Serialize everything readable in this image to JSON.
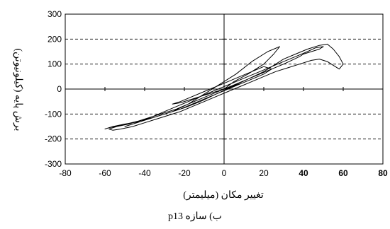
{
  "chart_data": {
    "type": "line",
    "xlabel": "تغییر مکان (میلیمتر)",
    "ylabel": "برش پایه (کیلونیوتن)",
    "xlim": [
      -80,
      80
    ],
    "ylim": [
      -300,
      300
    ],
    "x_ticks": [
      -80,
      -60,
      -40,
      -20,
      0,
      20,
      40,
      60,
      80
    ],
    "y_ticks": [
      -300,
      -200,
      -100,
      0,
      100,
      200,
      300
    ],
    "x_tick_labels": [
      "-80",
      "-60",
      "-40",
      "-20",
      "0",
      "20",
      "40",
      "60",
      "80"
    ],
    "y_tick_labels": [
      "-300",
      "-200",
      "-100",
      "0",
      "100",
      "200",
      "300"
    ],
    "bold_x_ticks": [
      40,
      60,
      80
    ],
    "y_gridlines": [
      200,
      100,
      -100,
      -200
    ],
    "grid": "horizontal dashed",
    "series": [
      {
        "line_color": "#000000",
        "x": [
          0,
          5,
          12,
          20,
          25,
          28,
          22,
          14,
          6,
          -2,
          -10,
          -18,
          -26,
          -34,
          -42,
          -50,
          -56,
          -60,
          -58,
          -52,
          -44,
          -36,
          -28,
          -20,
          -12,
          -4,
          4,
          12,
          20,
          26,
          30,
          36,
          42,
          48,
          52,
          55,
          58,
          60,
          58,
          55,
          52,
          48,
          44,
          38,
          32,
          26,
          20,
          14,
          8,
          2,
          -4,
          -10,
          -16,
          -22,
          -28,
          -34,
          -40,
          -46,
          -52,
          -56,
          -58,
          -54,
          -48,
          -42,
          -36,
          -30,
          -24,
          -18,
          -12,
          -6,
          0,
          6,
          12,
          18,
          24,
          30,
          34,
          38,
          40,
          44,
          48,
          50,
          46,
          42,
          36,
          30,
          24,
          18,
          12,
          6,
          0,
          -6,
          -12,
          -18,
          -24,
          -30,
          -36,
          -42,
          -48,
          -50,
          -46,
          -40,
          -34,
          -28,
          -22,
          -16,
          -10,
          -4,
          2,
          8,
          14,
          20,
          24,
          20,
          14,
          8,
          2,
          -4,
          -10,
          -16,
          -22,
          -26,
          -22,
          -16,
          -10,
          -4,
          0,
          4,
          8,
          4,
          0,
          -4,
          -8,
          -4,
          0,
          4,
          0
        ],
        "y": [
          0,
          30,
          60,
          100,
          140,
          170,
          150,
          110,
          60,
          20,
          -20,
          -60,
          -90,
          -110,
          -130,
          -140,
          -150,
          -160,
          -155,
          -145,
          -130,
          -115,
          -95,
          -75,
          -50,
          -20,
          10,
          40,
          70,
          100,
          120,
          140,
          160,
          175,
          180,
          160,
          130,
          100,
          80,
          95,
          110,
          120,
          115,
          100,
          85,
          70,
          50,
          30,
          10,
          -10,
          -30,
          -50,
          -70,
          -90,
          -105,
          -120,
          -135,
          -150,
          -160,
          -165,
          -160,
          -150,
          -140,
          -125,
          -110,
          -95,
          -80,
          -60,
          -40,
          -20,
          0,
          20,
          40,
          60,
          80,
          100,
          115,
          130,
          140,
          150,
          160,
          170,
          165,
          150,
          130,
          110,
          90,
          70,
          50,
          30,
          10,
          -10,
          -30,
          -50,
          -70,
          -90,
          -110,
          -130,
          -145,
          -150,
          -140,
          -125,
          -110,
          -95,
          -80,
          -60,
          -40,
          -20,
          0,
          20,
          40,
          60,
          80,
          90,
          70,
          50,
          30,
          10,
          -10,
          -30,
          -50,
          -60,
          -55,
          -40,
          -25,
          -10,
          0,
          10,
          20,
          10,
          0,
          -10,
          -20,
          -10,
          0,
          10,
          0
        ]
      }
    ]
  },
  "caption": "ب) سازه p13"
}
